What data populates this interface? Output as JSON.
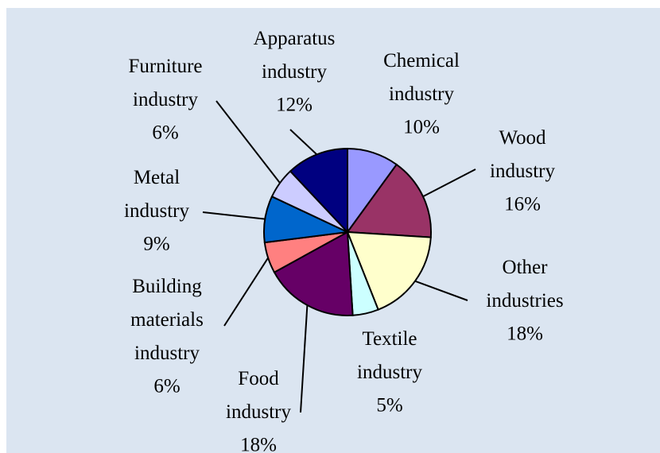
{
  "chart_data": {
    "type": "pie",
    "categories": [
      "Chemical industry",
      "Wood industry",
      "Other industries",
      "Textile industry",
      "Food industry",
      "Building materials industry",
      "Metal industry",
      "Furniture industry",
      "Apparatus industry"
    ],
    "values": [
      10,
      16,
      18,
      5,
      18,
      6,
      9,
      6,
      12
    ],
    "value_labels": [
      "10%",
      "16%",
      "18%",
      "5%",
      "18%",
      "6%",
      "9%",
      "6%",
      "12%"
    ],
    "colors": [
      "#9999ff",
      "#993366",
      "#ffffcc",
      "#ccffff",
      "#660066",
      "#ff8080",
      "#0066cc",
      "#ccccff",
      "#000080"
    ]
  }
}
